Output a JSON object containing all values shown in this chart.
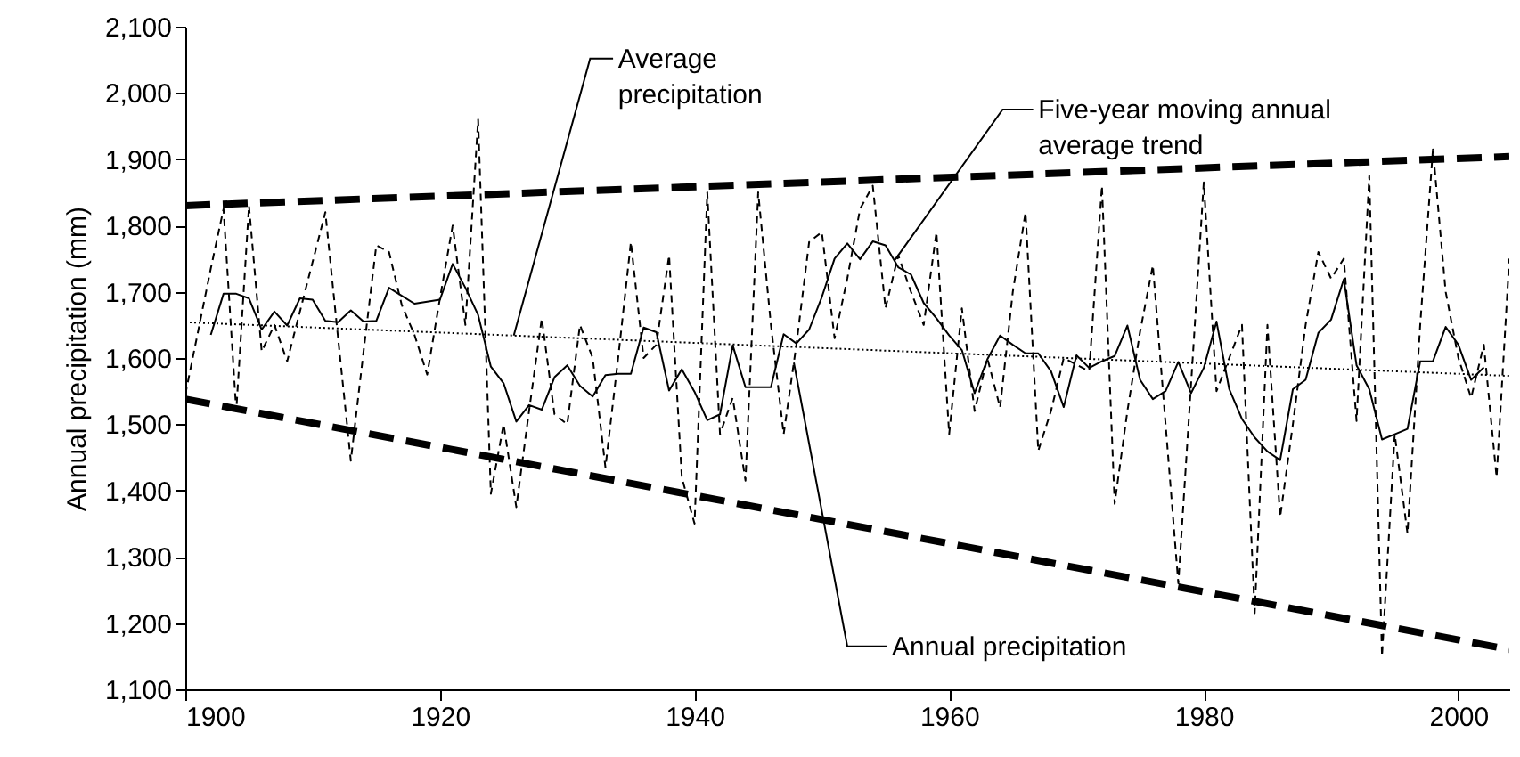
{
  "chart_data": {
    "type": "line",
    "ylabel": "Annual precipitation (mm)",
    "xlim": [
      1900,
      2004
    ],
    "ylim": [
      1100,
      2100
    ],
    "xticks": [
      1900,
      1920,
      1940,
      1960,
      1980,
      2000
    ],
    "yticks": [
      {
        "value": 1100,
        "label": "1,100"
      },
      {
        "value": 1200,
        "label": "1,200"
      },
      {
        "value": 1300,
        "label": "1,300"
      },
      {
        "value": 1400,
        "label": "1,400"
      },
      {
        "value": 1500,
        "label": "1,500"
      },
      {
        "value": 1600,
        "label": "1,600"
      },
      {
        "value": 1700,
        "label": "1,700"
      },
      {
        "value": 1800,
        "label": "1,800"
      },
      {
        "value": 1900,
        "label": "1,900"
      },
      {
        "value": 2000,
        "label": "2,000"
      },
      {
        "value": 2100,
        "label": "2,100"
      }
    ],
    "grid": false,
    "series": [
      {
        "name": "Annual precipitation",
        "color": "#000000",
        "line_style": "dashed",
        "x": [
          1900,
          1901,
          1902,
          1903,
          1904,
          1905,
          1906,
          1907,
          1908,
          1909,
          1910,
          1911,
          1912,
          1913,
          1914,
          1915,
          1916,
          1917,
          1918,
          1919,
          1920,
          1921,
          1922,
          1923,
          1924,
          1925,
          1926,
          1927,
          1928,
          1929,
          1930,
          1931,
          1932,
          1933,
          1934,
          1935,
          1936,
          1937,
          1938,
          1939,
          1940,
          1941,
          1942,
          1943,
          1944,
          1945,
          1946,
          1947,
          1948,
          1949,
          1950,
          1951,
          1952,
          1953,
          1954,
          1955,
          1956,
          1957,
          1958,
          1959,
          1960,
          1961,
          1962,
          1963,
          1964,
          1965,
          1966,
          1967,
          1968,
          1969,
          1970,
          1971,
          1972,
          1973,
          1974,
          1975,
          1976,
          1977,
          1978,
          1979,
          1980,
          1981,
          1982,
          1983,
          1984,
          1985,
          1986,
          1987,
          1988,
          1989,
          1990,
          1991,
          1992,
          1993,
          1994,
          1995,
          1996,
          1997,
          1998,
          1999,
          2000,
          2001,
          2002,
          2003,
          2004
        ],
        "values": [
          1545,
          1640,
          1735,
          1825,
          1520,
          1830,
          1610,
          1650,
          1595,
          1670,
          1745,
          1820,
          1630,
          1445,
          1610,
          1770,
          1760,
          1680,
          1635,
          1575,
          1690,
          1800,
          1650,
          1960,
          1395,
          1500,
          1375,
          1520,
          1660,
          1515,
          1500,
          1650,
          1600,
          1435,
          1600,
          1775,
          1600,
          1620,
          1755,
          1420,
          1350,
          1850,
          1485,
          1540,
          1415,
          1850,
          1650,
          1485,
          1620,
          1775,
          1790,
          1630,
          1720,
          1825,
          1860,
          1675,
          1755,
          1700,
          1650,
          1790,
          1485,
          1675,
          1520,
          1600,
          1525,
          1700,
          1820,
          1460,
          1520,
          1600,
          1590,
          1580,
          1860,
          1380,
          1520,
          1640,
          1740,
          1500,
          1260,
          1560,
          1865,
          1550,
          1600,
          1650,
          1215,
          1650,
          1360,
          1500,
          1650,
          1760,
          1720,
          1750,
          1505,
          1875,
          1150,
          1485,
          1335,
          1650,
          1915,
          1700,
          1600,
          1540,
          1620,
          1420,
          1750
        ]
      },
      {
        "name": "Five-year moving annual average trend",
        "color": "#000000",
        "line_style": "solid",
        "x": [
          1902,
          1903,
          1904,
          1905,
          1906,
          1907,
          1908,
          1909,
          1910,
          1911,
          1912,
          1913,
          1914,
          1915,
          1916,
          1917,
          1918,
          1919,
          1920,
          1921,
          1922,
          1923,
          1924,
          1925,
          1926,
          1927,
          1928,
          1929,
          1930,
          1931,
          1932,
          1933,
          1934,
          1935,
          1936,
          1937,
          1938,
          1939,
          1940,
          1941,
          1942,
          1943,
          1944,
          1945,
          1946,
          1947,
          1948,
          1949,
          1950,
          1951,
          1952,
          1953,
          1954,
          1955,
          1956,
          1957,
          1958,
          1959,
          1960,
          1961,
          1962,
          1963,
          1964,
          1965,
          1966,
          1967,
          1968,
          1969,
          1970,
          1971,
          1972,
          1973,
          1974,
          1975,
          1976,
          1977,
          1978,
          1979,
          1980,
          1981,
          1982,
          1983,
          1984,
          1985,
          1986,
          1987,
          1988,
          1989,
          1990,
          1991,
          1992,
          1993,
          1994,
          1995,
          1996,
          1997,
          1998,
          1999,
          2000,
          2001,
          2002
        ],
        "values": [
          1635,
          1697,
          1697,
          1690,
          1643,
          1670,
          1649,
          1690,
          1688,
          1656,
          1654,
          1672,
          1655,
          1656,
          1706,
          1694,
          1682,
          1685,
          1688,
          1742,
          1706,
          1665,
          1587,
          1562,
          1504,
          1529,
          1522,
          1571,
          1589,
          1558,
          1542,
          1574,
          1576,
          1576,
          1646,
          1639,
          1551,
          1583,
          1549,
          1506,
          1515,
          1619,
          1556,
          1556,
          1556,
          1636,
          1622,
          1643,
          1692,
          1750,
          1773,
          1749,
          1776,
          1770,
          1737,
          1726,
          1683,
          1660,
          1634,
          1612,
          1547,
          1598,
          1634,
          1620,
          1607,
          1607,
          1580,
          1526,
          1604,
          1585,
          1595,
          1603,
          1649,
          1567,
          1538,
          1550,
          1594,
          1547,
          1585,
          1655,
          1553,
          1508,
          1480,
          1459,
          1446,
          1553,
          1567,
          1638,
          1658,
          1719,
          1589,
          1553,
          1477,
          1485,
          1493,
          1595,
          1595,
          1647,
          1620,
          1567,
          1586
        ]
      },
      {
        "name": "Average precipitation",
        "color": "#000000",
        "line_style": "dotted",
        "x": [
          1900,
          2004
        ],
        "values": [
          1654,
          1573
        ]
      },
      {
        "color": "#000000",
        "line_style": "dashed",
        "x": [
          1900,
          2004
        ],
        "values": [
          1830,
          1904
        ]
      },
      {
        "color": "#000000",
        "line_style": "dashed",
        "x": [
          1900,
          2004
        ],
        "values": [
          1538,
          1160
        ]
      }
    ]
  }
}
